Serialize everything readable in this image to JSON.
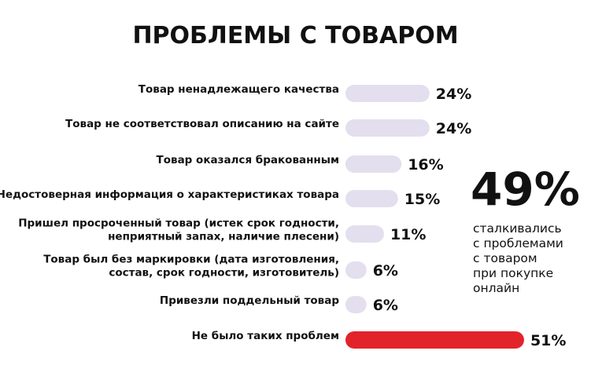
{
  "chart_data": {
    "type": "bar",
    "orientation": "horizontal",
    "title": "ПРОБЛЕМЫ С ТОВАРОМ",
    "unit": "%",
    "categories": [
      [
        "Товар ненадлежащего качества"
      ],
      [
        "Товар не соответствовал описанию на сайте"
      ],
      [
        "Товар оказался бракованным"
      ],
      [
        "Недостоверная информация о характеристиках товара"
      ],
      [
        "Пришел просроченный товар (истек срок годности,",
        "неприятный запах, наличие плесени)"
      ],
      [
        "Товар был без маркировки (дата изготовления,",
        "состав, срок годности, изготовитель)"
      ],
      [
        "Привезли поддельный товар"
      ],
      [
        "Не было таких проблем"
      ]
    ],
    "values": [
      24,
      24,
      16,
      15,
      11,
      6,
      6,
      51
    ],
    "value_labels": [
      "24%",
      "24%",
      "16%",
      "15%",
      "11%",
      "6%",
      "6%",
      "51%"
    ],
    "highlight_index": 7,
    "colors": {
      "bar": "#e3dfee",
      "highlight": "#e2232b",
      "text": "#111111"
    }
  },
  "stat": {
    "value": "49%",
    "caption": [
      "сталкивались",
      "с проблемами",
      "с товаром",
      "при покупке",
      "онлайн"
    ]
  }
}
